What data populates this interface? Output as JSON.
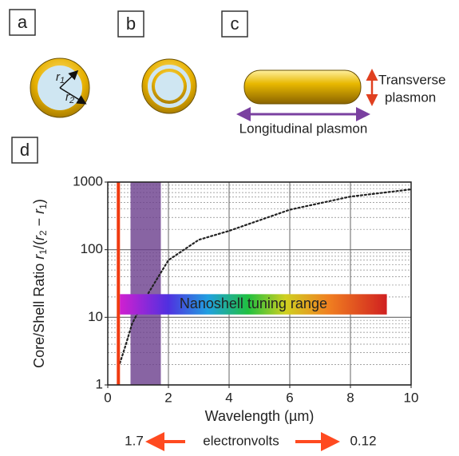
{
  "panels": {
    "a": {
      "label": "a",
      "r1": {
        "letter": "r",
        "sub": "1"
      },
      "r2": {
        "letter": "r",
        "sub": "2"
      }
    },
    "b": {
      "label": "b"
    },
    "c": {
      "label": "c",
      "transverse": [
        "Transverse",
        "plasmon"
      ],
      "longitudinal": "Longitudinal plasmon"
    },
    "d": {
      "label": "d"
    }
  },
  "chart_data": {
    "type": "line",
    "x_label": "Wavelength (µm)",
    "y_label": [
      {
        "text": "Core/Shell Ratio ",
        "style": "normal"
      },
      {
        "text": "r",
        "style": "italic"
      },
      {
        "text": "1",
        "style": "sub"
      },
      {
        "text": "/(",
        "style": "normal"
      },
      {
        "text": "r",
        "style": "italic"
      },
      {
        "text": "2",
        "style": "sub"
      },
      {
        "text": " − ",
        "style": "normal"
      },
      {
        "text": "r",
        "style": "italic"
      },
      {
        "text": "1",
        "style": "sub"
      },
      {
        "text": ")",
        "style": "normal"
      }
    ],
    "x": [
      0.4,
      0.6,
      0.8,
      1.2,
      2,
      3,
      4,
      6,
      8,
      10
    ],
    "values": [
      2.1,
      4,
      8,
      18,
      70,
      140,
      190,
      390,
      610,
      780
    ],
    "color": "#222",
    "xlim": [
      0,
      10
    ],
    "xticks": [
      0,
      2,
      4,
      6,
      8,
      10
    ],
    "ylim": [
      1,
      1000
    ],
    "yticks": [
      1,
      10,
      100,
      1000
    ],
    "log_y": true,
    "grid": true,
    "red_line_x": 0.35,
    "purple_band_x": [
      0.75,
      1.75
    ],
    "tuning_range": {
      "label": "Nanoshell tuning range",
      "x": [
        0.4,
        9.2
      ],
      "y": [
        11,
        22
      ]
    }
  },
  "energy_axis": {
    "left": "1.7",
    "label": "electronvolts",
    "right": "0.12"
  }
}
